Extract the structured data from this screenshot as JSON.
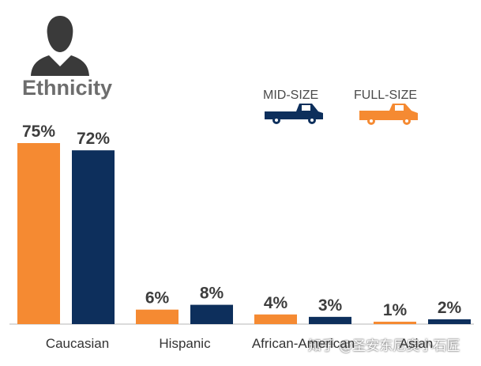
{
  "colors": {
    "full_size": "#f58a32",
    "mid_size": "#0d2f5c",
    "axis": "#cfcfcf",
    "icon": "#3a3a3a"
  },
  "icons": {
    "person": "person-silhouette-icon",
    "mid_truck": "pickup-truck-icon",
    "full_truck": "pickup-truck-icon"
  },
  "chart_data": {
    "type": "bar",
    "title": "Ethnicity",
    "categories": [
      "Caucasian",
      "Hispanic",
      "African-American",
      "Asian"
    ],
    "series": [
      {
        "name": "FULL-SIZE",
        "values": [
          75,
          6,
          4,
          1
        ]
      },
      {
        "name": "MID-SIZE",
        "values": [
          72,
          8,
          3,
          2
        ]
      }
    ],
    "value_labels": [
      [
        "75%",
        "6%",
        "4%",
        "1%"
      ],
      [
        "72%",
        "8%",
        "3%",
        "2%"
      ]
    ],
    "legend": [
      "MID-SIZE",
      "FULL-SIZE"
    ],
    "legend_placement": "top-right",
    "ylim": [
      0,
      75
    ],
    "grid": false
  },
  "watermark": "知乎 @圣安东尼奥小石匠"
}
